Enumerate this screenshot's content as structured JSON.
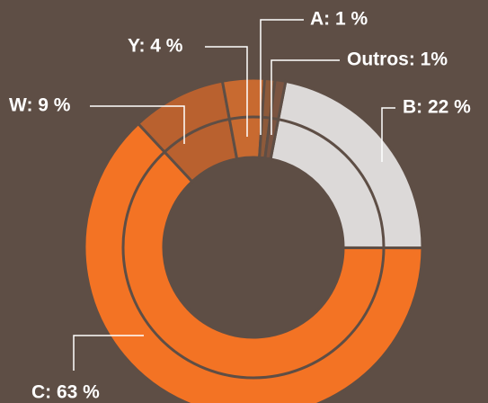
{
  "chart_data": {
    "type": "pie",
    "values": [
      22,
      63,
      9,
      4,
      1,
      1
    ],
    "value_labels": [
      "B:  22 %",
      "C:  63 %",
      "W:  9 %",
      "Y:  4 %",
      "A:  1 %",
      "Outros: 1%"
    ],
    "colors": [
      "#dcd9d8",
      "#f37324",
      "#b9612f",
      "#c86a30",
      "#8e5a3a",
      "#7b5441"
    ]
  }
}
